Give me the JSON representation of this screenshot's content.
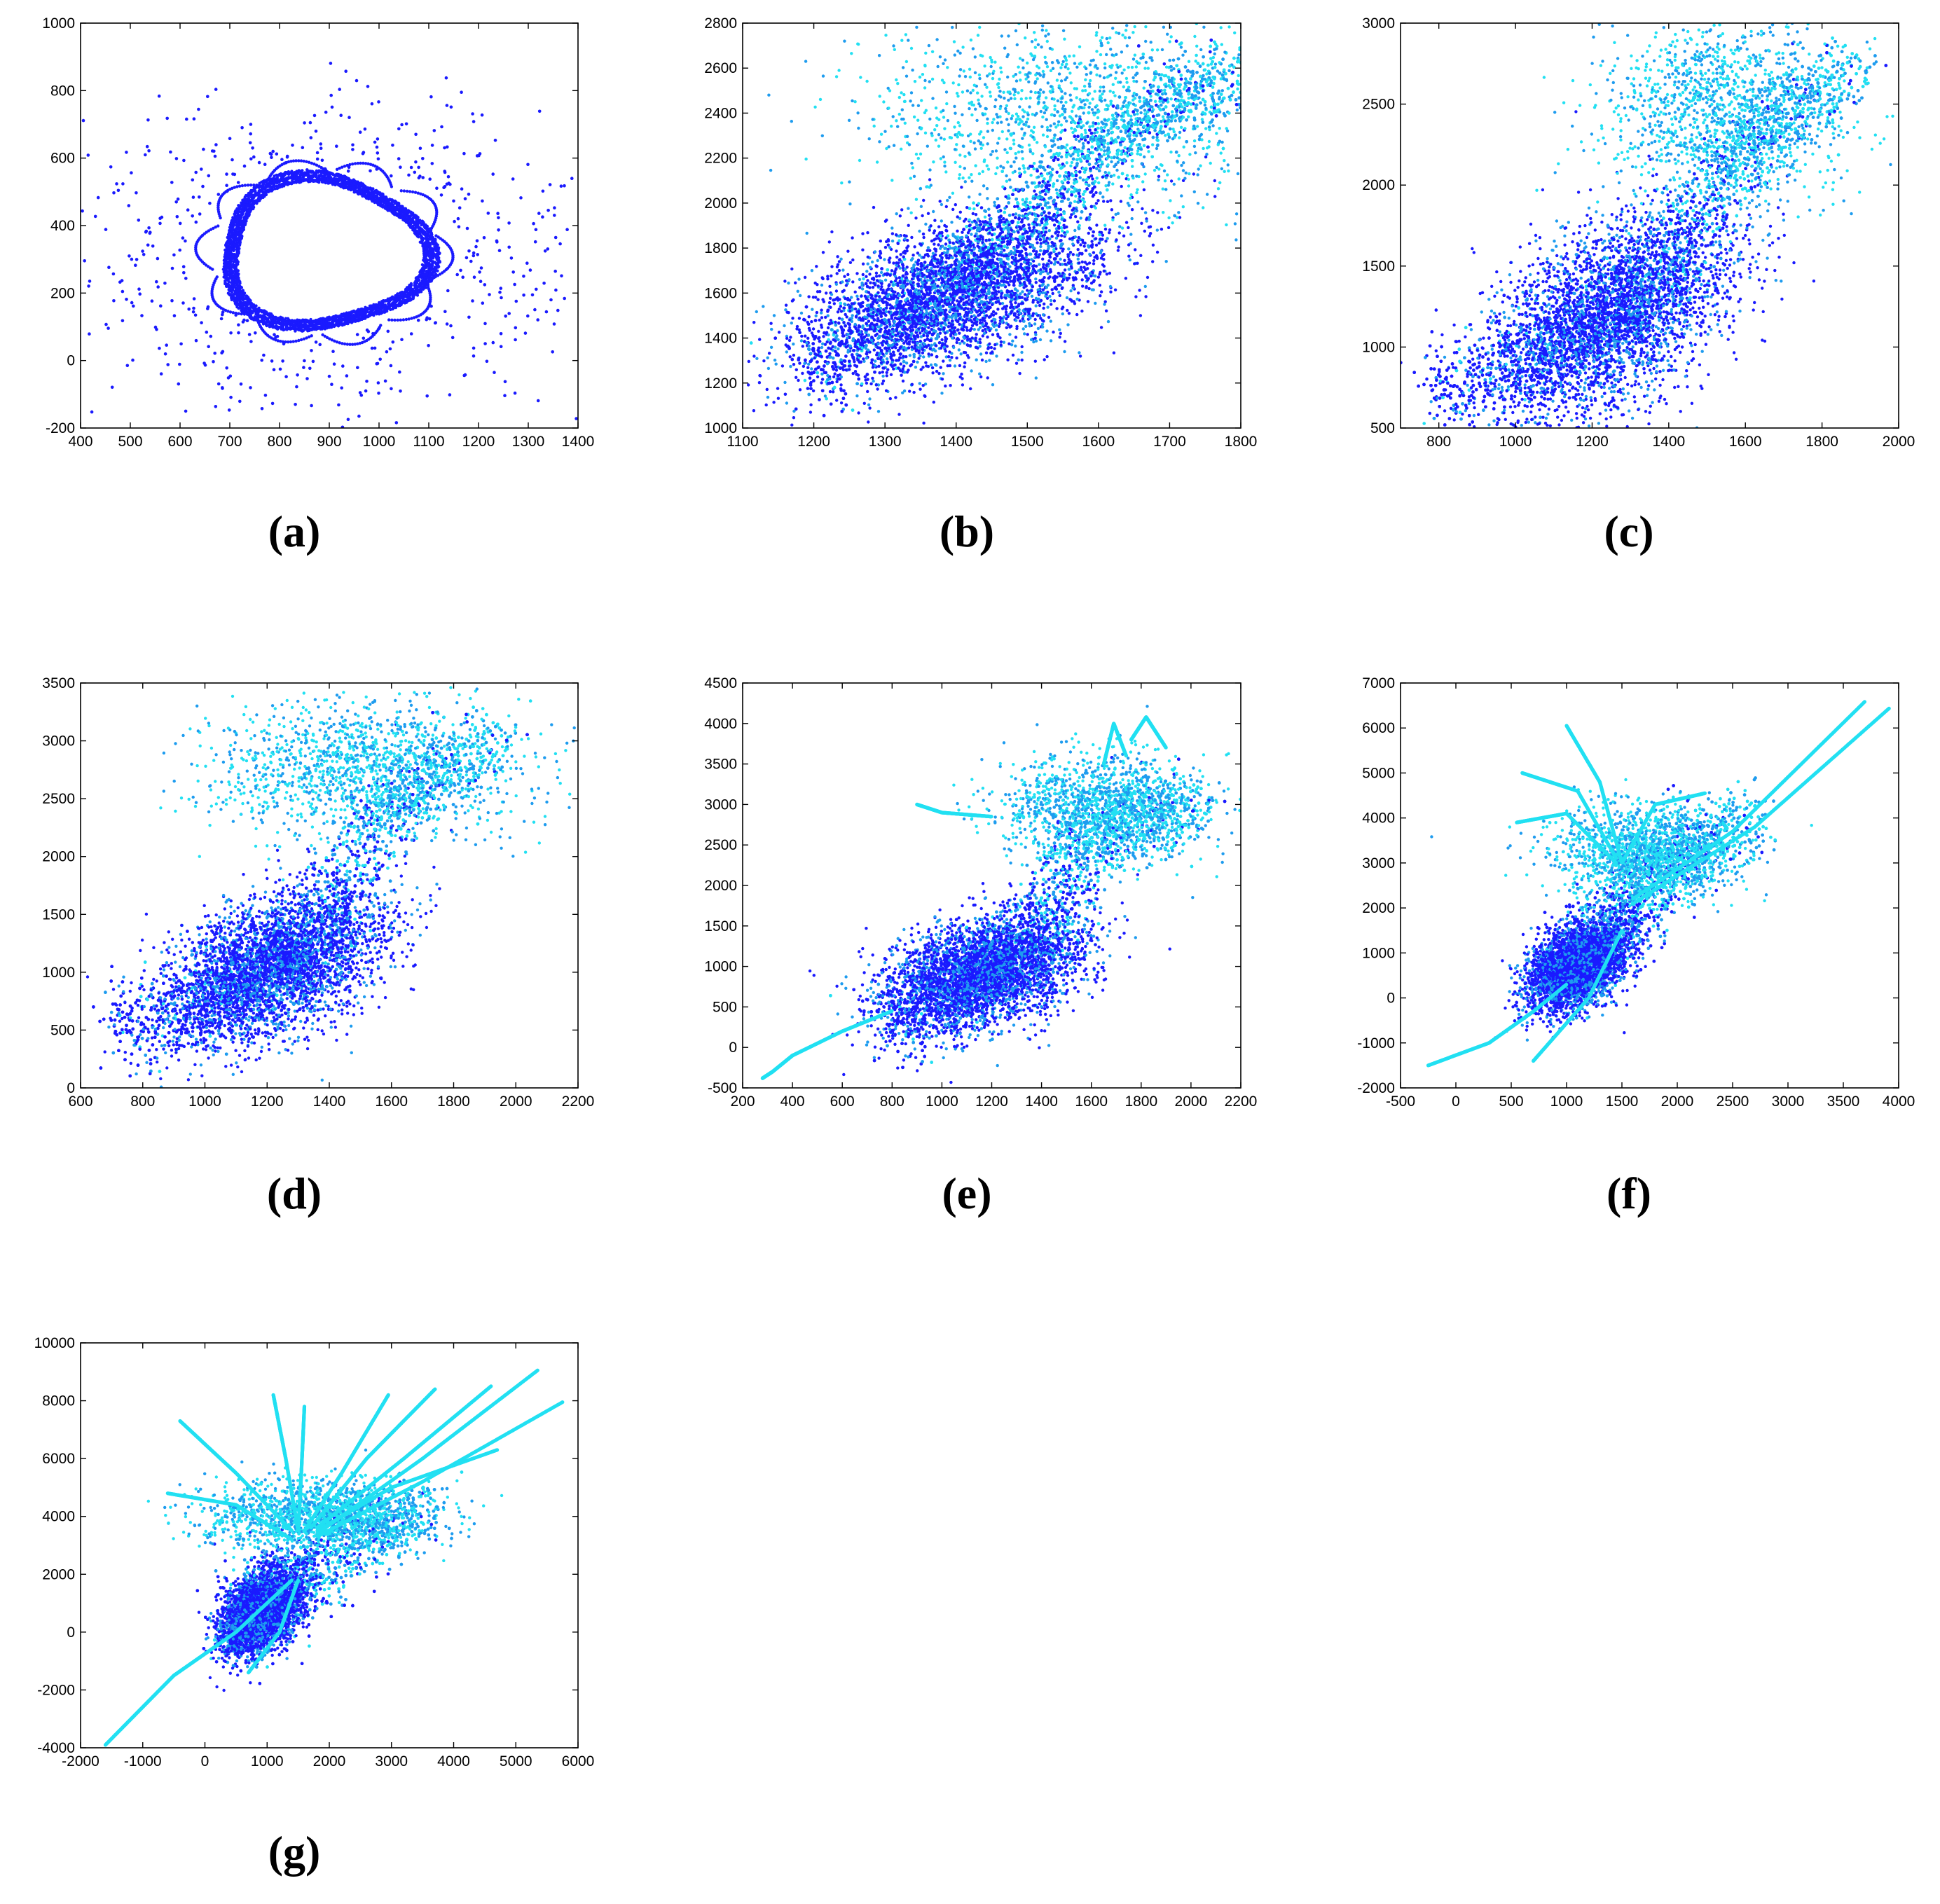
{
  "colors": {
    "dark": "#1a1aff",
    "mid": "#1e9cef",
    "light": "#22e0f2"
  },
  "chart_data": [
    {
      "panel": "a",
      "caption": "(a)",
      "type": "scatter",
      "style": "ring",
      "xlim": [
        400,
        1400
      ],
      "ylim": [
        -200,
        1000
      ],
      "xticks": [
        400,
        500,
        600,
        700,
        800,
        900,
        1000,
        1100,
        1200,
        1300,
        1400
      ],
      "yticks": [
        -200,
        0,
        200,
        400,
        600,
        800,
        1000
      ],
      "ring": {
        "cx": 890,
        "cy": 320,
        "rx": 185,
        "ry": 200
      }
    },
    {
      "panel": "b",
      "caption": "(b)",
      "type": "scatter",
      "style": "cloud",
      "xlim": [
        1100,
        1800
      ],
      "ylim": [
        1000,
        2800
      ],
      "xticks": [
        1100,
        1200,
        1300,
        1400,
        1500,
        1600,
        1700,
        1800
      ],
      "yticks": [
        1000,
        1200,
        1400,
        1600,
        1800,
        2000,
        2200,
        2400,
        2600,
        2800
      ],
      "spine": [
        [
          1200,
          1250
        ],
        [
          1300,
          1450
        ],
        [
          1400,
          1650
        ],
        [
          1500,
          1950
        ],
        [
          1600,
          2250
        ],
        [
          1700,
          2450
        ],
        [
          1790,
          2550
        ]
      ],
      "core": [
        [
          1400,
          1600,
          110,
          170,
          -0.3
        ]
      ],
      "halo": [
        [
          1560,
          2400,
          140,
          220,
          0
        ]
      ]
    },
    {
      "panel": "c",
      "caption": "(c)",
      "type": "scatter",
      "style": "cloud",
      "xlim": [
        700,
        2000
      ],
      "ylim": [
        500,
        3000
      ],
      "xticks": [
        800,
        1000,
        1200,
        1400,
        1600,
        1800,
        2000
      ],
      "yticks": [
        500,
        1000,
        1500,
        2000,
        2500,
        3000
      ],
      "spine": [
        [
          800,
          700
        ],
        [
          1000,
          900
        ],
        [
          1200,
          1100
        ],
        [
          1400,
          1500
        ],
        [
          1550,
          2100
        ],
        [
          1700,
          2450
        ],
        [
          1880,
          2700
        ]
      ],
      "core": [
        [
          1250,
          1200,
          160,
          300,
          -0.35
        ]
      ],
      "halo": [
        [
          1550,
          2450,
          160,
          280,
          0
        ]
      ]
    },
    {
      "panel": "d",
      "caption": "(d)",
      "type": "scatter",
      "style": "cloud",
      "xlim": [
        600,
        2200
      ],
      "ylim": [
        0,
        3500
      ],
      "xticks": [
        600,
        800,
        1000,
        1200,
        1400,
        1600,
        1800,
        2000,
        2200
      ],
      "yticks": [
        0,
        500,
        1000,
        1500,
        2000,
        2500,
        3000,
        3500
      ],
      "spine": [
        [
          720,
          500
        ],
        [
          1000,
          750
        ],
        [
          1200,
          1000
        ],
        [
          1400,
          1500
        ],
        [
          1550,
          2300
        ],
        [
          1700,
          2650
        ],
        [
          1930,
          3000
        ]
      ],
      "core": [
        [
          1220,
          1050,
          180,
          320,
          -0.4
        ]
      ],
      "halo": [
        [
          1520,
          2750,
          240,
          280,
          0
        ]
      ]
    },
    {
      "panel": "e",
      "caption": "(e)",
      "type": "scatter",
      "style": "cloud",
      "xlim": [
        200,
        2200
      ],
      "ylim": [
        -500,
        4500
      ],
      "xticks": [
        200,
        400,
        600,
        800,
        1000,
        1200,
        1400,
        1600,
        1800,
        2000,
        2200
      ],
      "yticks": [
        -500,
        0,
        500,
        1000,
        1500,
        2000,
        2500,
        3000,
        3500,
        4000,
        4500
      ],
      "spine": [
        [
          800,
          300
        ],
        [
          1100,
          800
        ],
        [
          1300,
          1200
        ],
        [
          1450,
          1700
        ],
        [
          1550,
          2500
        ],
        [
          1800,
          2850
        ],
        [
          2000,
          2950
        ]
      ],
      "core": [
        [
          1150,
          900,
          200,
          380,
          -0.5
        ]
      ],
      "halo": [
        [
          1650,
          2950,
          200,
          330,
          0
        ]
      ],
      "curves": [
        [
          [
            280,
            -380
          ],
          [
            320,
            -300
          ],
          [
            400,
            -100
          ],
          [
            600,
            200
          ],
          [
            800,
            450
          ]
        ],
        [
          [
            1650,
            3500
          ],
          [
            1690,
            4000
          ],
          [
            1740,
            3600
          ]
        ],
        [
          [
            1760,
            3800
          ],
          [
            1820,
            4080
          ],
          [
            1900,
            3700
          ]
        ],
        [
          [
            900,
            3000
          ],
          [
            1000,
            2900
          ],
          [
            1200,
            2850
          ]
        ]
      ]
    },
    {
      "panel": "f",
      "caption": "(f)",
      "type": "scatter",
      "style": "burst",
      "xlim": [
        -500,
        4000
      ],
      "ylim": [
        -2000,
        7000
      ],
      "xticks": [
        -500,
        0,
        500,
        1000,
        1500,
        2000,
        2500,
        3000,
        3500,
        4000
      ],
      "yticks": [
        -2000,
        -1000,
        0,
        1000,
        2000,
        3000,
        4000,
        5000,
        6000,
        7000
      ],
      "spine": [
        [
          900,
          500
        ],
        [
          1200,
          1000
        ],
        [
          1500,
          1800
        ],
        [
          1800,
          2800
        ],
        [
          2200,
          3400
        ],
        [
          2600,
          3900
        ]
      ],
      "core": [
        [
          1100,
          700,
          220,
          500,
          -0.5
        ]
      ],
      "halo": [
        [
          1700,
          3200,
          400,
          500,
          0
        ]
      ],
      "curves": [
        [
          [
            -250,
            -1500
          ],
          [
            300,
            -1000
          ],
          [
            700,
            -300
          ],
          [
            1000,
            300
          ]
        ],
        [
          [
            1000,
            6050
          ],
          [
            1300,
            4800
          ],
          [
            1500,
            3000
          ]
        ],
        [
          [
            600,
            5000
          ],
          [
            1100,
            4600
          ],
          [
            1450,
            3100
          ]
        ],
        [
          [
            550,
            3900
          ],
          [
            1000,
            4100
          ],
          [
            1450,
            3000
          ]
        ],
        [
          [
            700,
            -1400
          ],
          [
            1200,
            0
          ],
          [
            1500,
            1500
          ]
        ],
        [
          [
            2250,
            4550
          ],
          [
            1800,
            4300
          ],
          [
            1500,
            3000
          ]
        ],
        [
          [
            1600,
            2200
          ],
          [
            2500,
            3700
          ],
          [
            3700,
            6600
          ]
        ],
        [
          [
            1600,
            2100
          ],
          [
            2700,
            3800
          ],
          [
            3920,
            6450
          ]
        ]
      ]
    },
    {
      "panel": "g",
      "caption": "(g)",
      "type": "scatter",
      "style": "burst",
      "xlim": [
        -2000,
        6000
      ],
      "ylim": [
        -4000,
        10000
      ],
      "xticks": [
        -2000,
        -1000,
        0,
        1000,
        2000,
        3000,
        4000,
        5000,
        6000
      ],
      "yticks": [
        -4000,
        -2000,
        0,
        2000,
        4000,
        6000,
        8000,
        10000
      ],
      "spine": [
        [
          500,
          300
        ],
        [
          1000,
          900
        ],
        [
          1500,
          2000
        ],
        [
          2500,
          3500
        ],
        [
          3500,
          4200
        ]
      ],
      "core": [
        [
          900,
          700,
          300,
          700,
          -0.5
        ]
      ],
      "halo": [
        [
          1800,
          4000,
          900,
          600,
          0
        ]
      ],
      "curves": [
        [
          [
            -1600,
            -3900
          ],
          [
            -500,
            -1500
          ],
          [
            500,
            0
          ],
          [
            1400,
            1800
          ]
        ],
        [
          [
            -400,
            7300
          ],
          [
            500,
            5500
          ],
          [
            1400,
            3500
          ]
        ],
        [
          [
            -600,
            4800
          ],
          [
            500,
            4400
          ],
          [
            1400,
            3200
          ]
        ],
        [
          [
            1100,
            8200
          ],
          [
            1300,
            6000
          ],
          [
            1500,
            3500
          ]
        ],
        [
          [
            1600,
            7800
          ],
          [
            1550,
            5500
          ],
          [
            1500,
            3500
          ]
        ],
        [
          [
            2950,
            8200
          ],
          [
            2200,
            5500
          ],
          [
            1600,
            3500
          ]
        ],
        [
          [
            3700,
            8400
          ],
          [
            2600,
            6000
          ],
          [
            1700,
            3600
          ]
        ],
        [
          [
            4600,
            8500
          ],
          [
            3200,
            6000
          ],
          [
            1800,
            3600
          ]
        ],
        [
          [
            4700,
            6300
          ],
          [
            3000,
            5000
          ],
          [
            1800,
            3500
          ]
        ],
        [
          [
            5350,
            9050
          ],
          [
            3500,
            6000
          ],
          [
            1800,
            3400
          ]
        ],
        [
          [
            5750,
            7950
          ],
          [
            3500,
            5200
          ],
          [
            1800,
            3300
          ]
        ],
        [
          [
            700,
            -1400
          ],
          [
            1200,
            0
          ],
          [
            1500,
            1800
          ]
        ]
      ]
    }
  ]
}
